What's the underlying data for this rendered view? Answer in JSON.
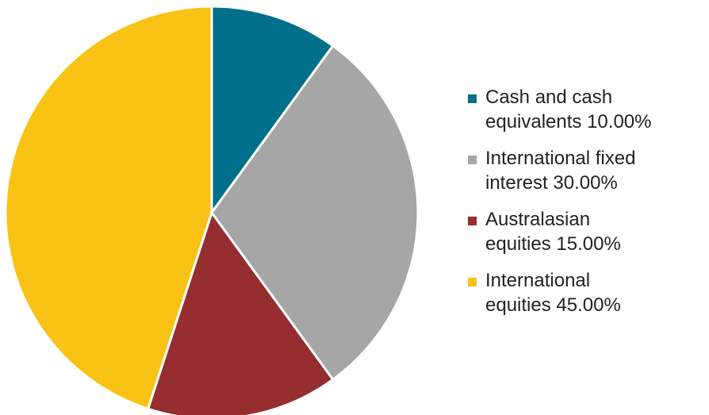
{
  "chart_data": {
    "type": "pie",
    "title": "",
    "slices": [
      {
        "label": "Cash and cash\nequivalents 10.00%",
        "value": 10.0,
        "color": "#00708a"
      },
      {
        "label": "International fixed\ninterest 30.00%",
        "value": 30.0,
        "color": "#a6a6a6"
      },
      {
        "label": "Australasian\nequities 15.00%",
        "value": 15.0,
        "color": "#962d2e"
      },
      {
        "label": "International\nequities 45.00%",
        "value": 45.0,
        "color": "#f8c315"
      }
    ],
    "legend_position": "right",
    "start_angle": "12 o'clock",
    "direction": "clockwise"
  }
}
